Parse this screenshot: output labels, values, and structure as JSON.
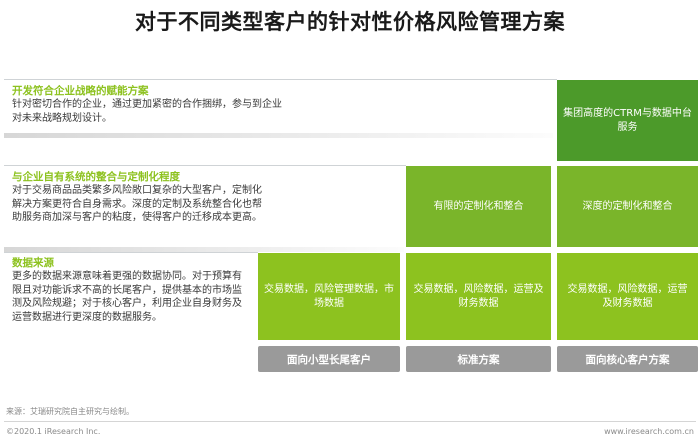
{
  "title": "对于不同类型客户的针对性价格风险管理方案",
  "sections": [
    {
      "title": "开发符合企业战略的赋能方案",
      "body": "针对密切合作的企业，通过更加紧密的合作捆绑，参与到企业对未来战略规划设计。"
    },
    {
      "title": "与企业自有系统的整合与定制化程度",
      "body": "对于交易商品品类繁多风险敞口复杂的大型客户，定制化解决方案更符合自身需求。深度的定制及系统整合化也帮助服务商加深与客户的粘度，使得客户的迁移成本更高。"
    },
    {
      "title": "数据来源",
      "body": "更多的数据来源意味着更强的数据协同。对于预算有限且对功能诉求不高的长尾客户，提供基本的市场监测及风险规避；对于核心客户，利用企业自身财务及运营数据进行更深度的数据服务。"
    }
  ],
  "cells": {
    "top_core": "集团高度的CTRM与数据中台服务",
    "mid_standard": "有限的定制化和整合",
    "mid_core": "深度的定制化和整合",
    "bottom_small": "交易数据，风险管理数据，市场数据",
    "bottom_standard": "交易数据，风险数据，运营及财务数据",
    "bottom_core": "交易数据，风险数据，运营及财务数据"
  },
  "categories": [
    "面向小型长尾客户",
    "标准方案",
    "面向核心客户方案"
  ],
  "footer": {
    "source": "来源：艾瑞研究院自主研究与绘制。",
    "copyright": "©2020.1 iResearch Inc.",
    "website": "www.iresearch.com.cn"
  },
  "colors": {
    "accent_green": "#8dc21f",
    "mid_green": "#7ab52a",
    "dark_green": "#4c9a2a",
    "category_gray": "#9a9a9a"
  }
}
